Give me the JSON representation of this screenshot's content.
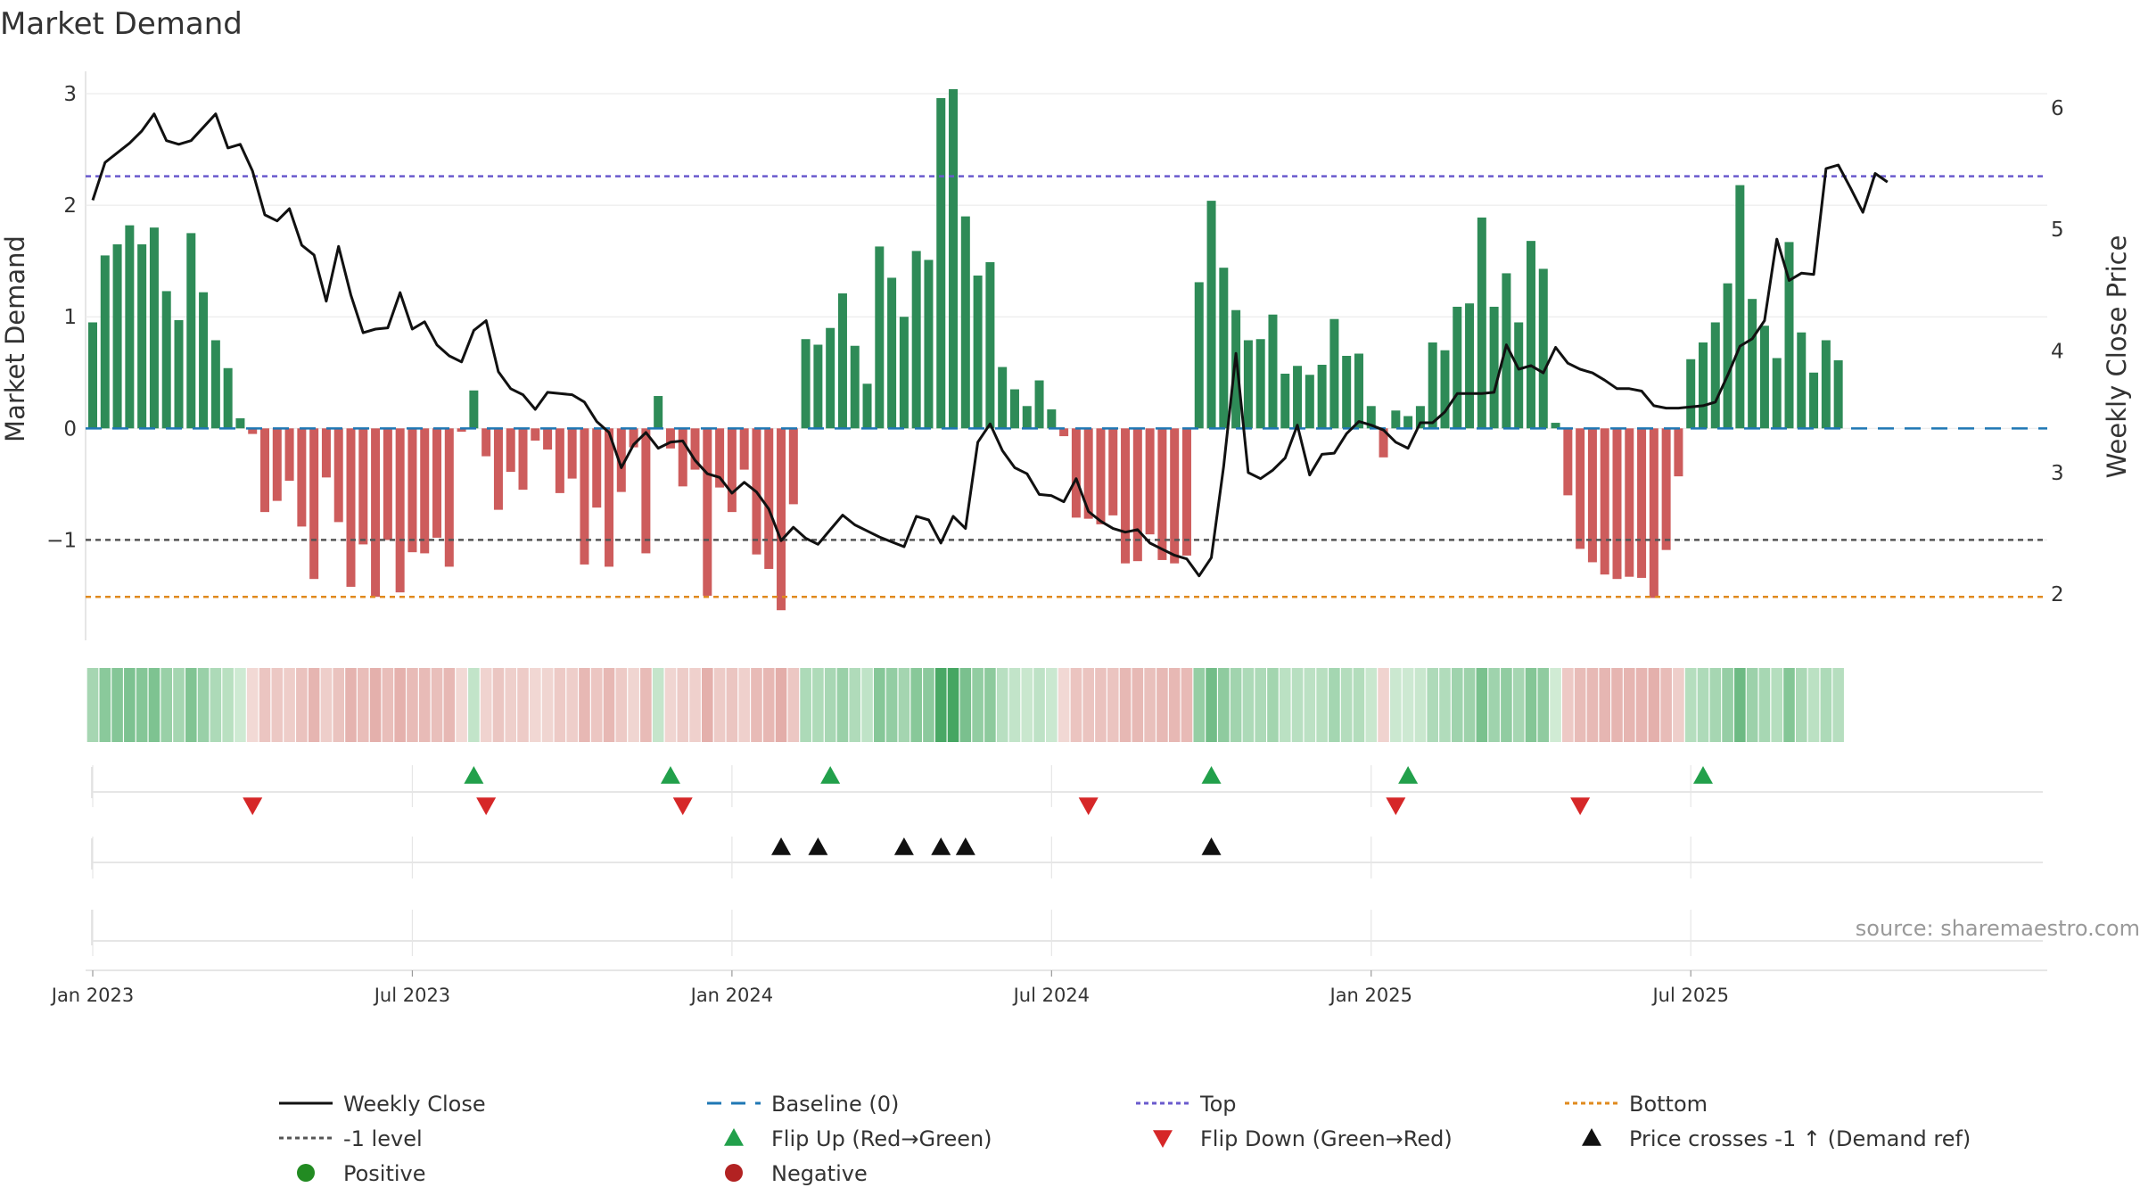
{
  "colors": {
    "positive_bar": "#2e8b57",
    "negative_bar": "#cd5c5c",
    "price_line": "#111111",
    "baseline": "#1f77b4",
    "top_line": "#6a5acd",
    "minus_one_line": "#555555",
    "bottom_line": "#e08a1e",
    "flip_up": "#22a04b",
    "flip_down": "#d62728",
    "cross_marker": "#111111",
    "positive_dot": "#228b22",
    "negative_dot": "#b22222"
  },
  "chart_data": {
    "type": "bar",
    "title": "Market Demand",
    "ylabel_left": "Market Demand",
    "ylabel_right": "Weekly Close Price",
    "source": "source: sharemaestro.com",
    "ylim_left": [
      -1.9,
      3.2
    ],
    "yticks_left": [
      {
        "value": 3,
        "label": "3"
      },
      {
        "value": 2,
        "label": "2"
      },
      {
        "value": 1,
        "label": "1"
      },
      {
        "value": 0,
        "label": "0"
      },
      {
        "value": -1,
        "label": "−1"
      }
    ],
    "ylim_right": [
      1.62,
      6.3
    ],
    "yticks_right": [
      {
        "value": 6,
        "label": "6"
      },
      {
        "value": 5,
        "label": "5"
      },
      {
        "value": 4,
        "label": "4"
      },
      {
        "value": 3,
        "label": "3"
      },
      {
        "value": 2,
        "label": "2"
      }
    ],
    "x_ticks": [
      {
        "week": 1,
        "label": "Jan 2023"
      },
      {
        "week": 27,
        "label": "Jul 2023"
      },
      {
        "week": 53,
        "label": "Jan 2024"
      },
      {
        "week": 79,
        "label": "Jul 2024"
      },
      {
        "week": 105,
        "label": "Jan 2025"
      },
      {
        "week": 131,
        "label": "Jul 2025"
      }
    ],
    "reference_levels": {
      "baseline": 0,
      "top": 2.26,
      "minus_one": -1,
      "bottom": -1.51
    },
    "demand": [
      0.95,
      1.55,
      1.65,
      1.82,
      1.65,
      1.8,
      1.23,
      0.97,
      1.75,
      1.22,
      0.79,
      0.54,
      0.09,
      -0.05,
      -0.75,
      -0.65,
      -0.47,
      -0.88,
      -1.35,
      -0.44,
      -0.84,
      -1.42,
      -1.04,
      -1.51,
      -1.0,
      -1.47,
      -1.11,
      -1.12,
      -0.98,
      -1.24,
      -0.03,
      0.34,
      -0.25,
      -0.73,
      -0.39,
      -0.55,
      -0.11,
      -0.19,
      -0.58,
      -0.45,
      -1.22,
      -0.71,
      -1.24,
      -0.57,
      -0.17,
      -1.12,
      0.29,
      -0.18,
      -0.52,
      -0.37,
      -1.5,
      -0.53,
      -0.75,
      -0.37,
      -1.13,
      -1.26,
      -1.63,
      -0.68,
      0.8,
      0.75,
      0.9,
      1.21,
      0.74,
      0.4,
      1.63,
      1.35,
      1.0,
      1.59,
      1.51,
      2.96,
      3.04,
      1.9,
      1.37,
      1.49,
      0.55,
      0.35,
      0.2,
      0.43,
      0.17,
      -0.07,
      -0.8,
      -0.81,
      -0.86,
      -0.78,
      -1.21,
      -1.19,
      -0.95,
      -1.18,
      -1.21,
      -1.14,
      1.31,
      2.04,
      1.44,
      1.06,
      0.79,
      0.8,
      1.02,
      0.49,
      0.56,
      0.48,
      0.57,
      0.98,
      0.65,
      0.67,
      0.2,
      -0.26,
      0.16,
      0.11,
      0.2,
      0.77,
      0.7,
      1.09,
      1.12,
      1.89,
      1.09,
      1.39,
      0.95,
      1.68,
      1.43,
      0.05,
      -0.6,
      -1.08,
      -1.2,
      -1.31,
      -1.35,
      -1.33,
      -1.34,
      -1.52,
      -1.09,
      -0.43,
      0.62,
      0.77,
      0.95,
      1.3,
      2.18,
      1.16,
      0.92,
      0.63,
      1.67,
      0.86,
      0.5,
      0.79,
      0.61
    ],
    "weekly_close": [
      5.24,
      5.55,
      5.63,
      5.71,
      5.81,
      5.95,
      5.73,
      5.7,
      5.73,
      5.84,
      5.95,
      5.67,
      5.7,
      5.48,
      5.12,
      5.07,
      5.17,
      4.87,
      4.79,
      4.41,
      4.86,
      4.46,
      4.15,
      4.18,
      4.19,
      4.48,
      4.18,
      4.24,
      4.05,
      3.96,
      3.91,
      4.17,
      4.25,
      3.83,
      3.69,
      3.64,
      3.52,
      3.66,
      3.65,
      3.64,
      3.58,
      3.42,
      3.33,
      3.04,
      3.23,
      3.33,
      3.2,
      3.25,
      3.26,
      3.1,
      2.99,
      2.96,
      2.83,
      2.92,
      2.84,
      2.7,
      2.44,
      2.55,
      2.46,
      2.41,
      2.53,
      2.65,
      2.57,
      2.52,
      2.47,
      2.43,
      2.39,
      2.64,
      2.61,
      2.42,
      2.64,
      2.54,
      3.25,
      3.4,
      3.18,
      3.04,
      2.99,
      2.82,
      2.81,
      2.76,
      2.95,
      2.68,
      2.6,
      2.54,
      2.51,
      2.53,
      2.42,
      2.37,
      2.32,
      2.29,
      2.15,
      2.3,
      3.05,
      3.98,
      3.0,
      2.95,
      3.02,
      3.12,
      3.39,
      2.98,
      3.15,
      3.16,
      3.32,
      3.42,
      3.39,
      3.35,
      3.25,
      3.2,
      3.41,
      3.41,
      3.5,
      3.65,
      3.65,
      3.65,
      3.66,
      4.05,
      3.85,
      3.88,
      3.82,
      4.03,
      3.9,
      3.85,
      3.82,
      3.76,
      3.69,
      3.69,
      3.67,
      3.55,
      3.53,
      3.53,
      3.54,
      3.55,
      3.58,
      3.8,
      4.04,
      4.1,
      4.25,
      4.92,
      4.58,
      4.64,
      4.63,
      5.5,
      5.53,
      5.34,
      5.14,
      5.46,
      5.39
    ],
    "flip_up_weeks": [
      32,
      48,
      61,
      92,
      108,
      132
    ],
    "flip_down_weeks": [
      14,
      33,
      49,
      82,
      107,
      122
    ],
    "price_cross_weeks": [
      57,
      60,
      67,
      70,
      72,
      92
    ],
    "legend": [
      {
        "key": "weekly_close",
        "label": "Weekly Close",
        "symbol": "line"
      },
      {
        "key": "baseline",
        "label": "Baseline (0)",
        "symbol": "dash"
      },
      {
        "key": "top",
        "label": "Top",
        "symbol": "dot-blue"
      },
      {
        "key": "bottom",
        "label": "Bottom",
        "symbol": "dot-orange"
      },
      {
        "key": "minus_one",
        "label": "-1 level",
        "symbol": "dot-grey"
      },
      {
        "key": "flip_up",
        "label": "Flip Up (Red→Green)",
        "symbol": "tri-up-green"
      },
      {
        "key": "flip_down",
        "label": "Flip Down (Green→Red)",
        "symbol": "tri-down-red"
      },
      {
        "key": "price_cross",
        "label": "Price crosses -1 ↑ (Demand ref)",
        "symbol": "tri-up-black"
      },
      {
        "key": "positive",
        "label": "Positive",
        "symbol": "dot-green"
      },
      {
        "key": "negative",
        "label": "Negative",
        "symbol": "dot-red"
      }
    ]
  }
}
